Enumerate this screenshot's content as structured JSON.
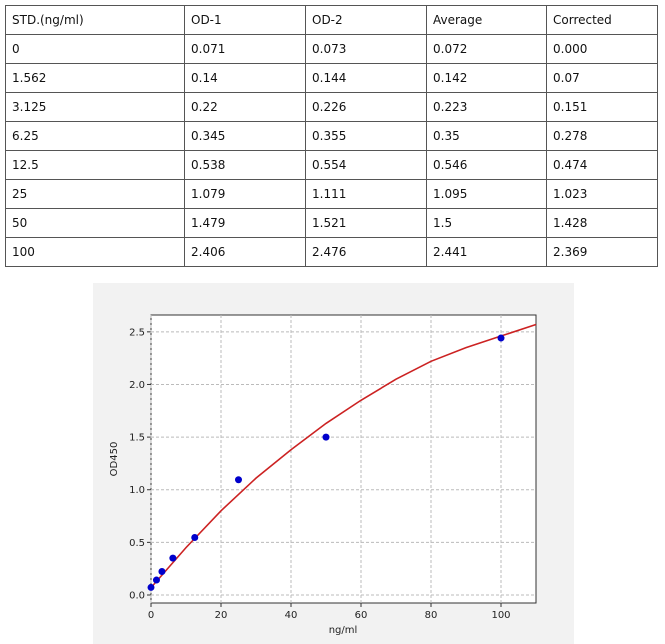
{
  "table": {
    "header": [
      "STD.(ng/ml)",
      "OD-1",
      "OD-2",
      "Average",
      "Corrected"
    ],
    "rows": [
      [
        "0",
        "0.071",
        "0.073",
        "0.072",
        "0.000"
      ],
      [
        "1.562",
        "0.14",
        "0.144",
        "0.142",
        "0.07"
      ],
      [
        "3.125",
        "0.22",
        "0.226",
        "0.223",
        "0.151"
      ],
      [
        "6.25",
        "0.345",
        "0.355",
        "0.35",
        "0.278"
      ],
      [
        "12.5",
        "0.538",
        "0.554",
        "0.546",
        "0.474"
      ],
      [
        "25",
        "1.079",
        "1.111",
        "1.095",
        "1.023"
      ],
      [
        "50",
        "1.479",
        "1.521",
        "1.5",
        "1.428"
      ],
      [
        "100",
        "2.406",
        "2.476",
        "2.441",
        "2.369"
      ]
    ]
  },
  "chart_data": {
    "type": "scatter",
    "xlabel": "ng/ml",
    "ylabel": "OD450",
    "x": [
      0,
      1.562,
      3.125,
      6.25,
      12.5,
      25,
      50,
      100
    ],
    "values": [
      0.072,
      0.142,
      0.223,
      0.35,
      0.546,
      1.095,
      1.5,
      2.441
    ],
    "color": "#0000cc",
    "fit": {
      "x": [
        0,
        10,
        20,
        30,
        40,
        50,
        60,
        70,
        80,
        90,
        100,
        110
      ],
      "values": [
        0.07,
        0.45,
        0.8,
        1.11,
        1.38,
        1.63,
        1.85,
        2.05,
        2.22,
        2.35,
        2.46,
        2.57
      ],
      "color": "#cc2222"
    },
    "xlim": [
      0,
      110
    ],
    "xticks": [
      0,
      20,
      40,
      60,
      80,
      100
    ],
    "ylim": [
      -0.076,
      2.66
    ],
    "yticks": [
      {
        "value": 0,
        "label": "0.0"
      },
      {
        "value": 0.5,
        "label": "0.5"
      },
      {
        "value": 1,
        "label": "1.0"
      },
      {
        "value": 1.5,
        "label": "1.5"
      },
      {
        "value": 2,
        "label": "2.0"
      },
      {
        "value": 2.5,
        "label": "2.5"
      }
    ],
    "grid": true
  }
}
